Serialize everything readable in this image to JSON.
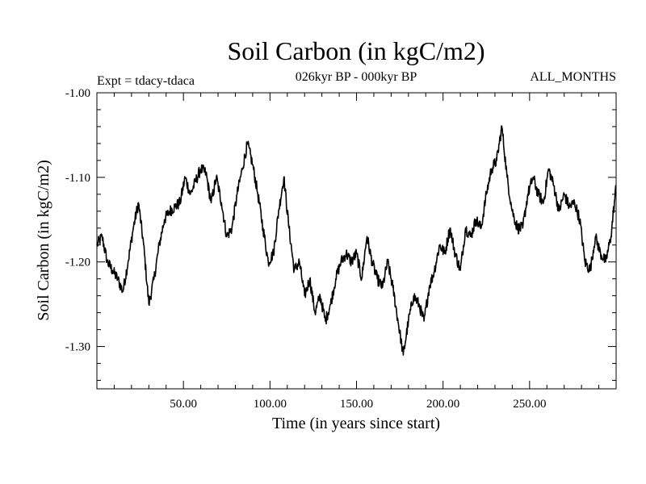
{
  "chart_data": {
    "type": "line",
    "title": "Soil Carbon (in kgC/m2)",
    "subtitle": "026kyr BP - 000kyr BP",
    "left_annotation": "Expt = tdacy-tdaca",
    "right_annotation": "ALL_MONTHS",
    "xlabel": "Time (in years since start)",
    "ylabel": "Soil Carbon (in kgC/m2)",
    "xlim": [
      0,
      300
    ],
    "ylim": [
      -1.35,
      -1.0
    ],
    "x_ticks": [
      50,
      100,
      150,
      200,
      250
    ],
    "x_tick_labels": [
      "50.00",
      "100.00",
      "150.00",
      "200.00",
      "250.00"
    ],
    "y_ticks": [
      -1.0,
      -1.1,
      -1.2,
      -1.3
    ],
    "y_tick_labels": [
      "-1.00",
      "-1.10",
      "-1.20",
      "-1.30"
    ],
    "grid": false,
    "series": [
      {
        "name": "Soil Carbon",
        "color": "#000000",
        "x": [
          0,
          3,
          6,
          9,
          12,
          15,
          18,
          21,
          24,
          27,
          30,
          33,
          36,
          39,
          42,
          45,
          48,
          51,
          54,
          57,
          60,
          63,
          66,
          69,
          72,
          75,
          78,
          81,
          84,
          87,
          90,
          93,
          96,
          99,
          102,
          105,
          108,
          111,
          114,
          117,
          120,
          123,
          126,
          129,
          132,
          135,
          138,
          141,
          144,
          147,
          150,
          153,
          156,
          159,
          162,
          165,
          168,
          171,
          174,
          177,
          180,
          183,
          186,
          189,
          192,
          195,
          198,
          201,
          204,
          207,
          210,
          213,
          216,
          219,
          222,
          225,
          228,
          231,
          234,
          237,
          240,
          243,
          246,
          249,
          252,
          255,
          258,
          261,
          264,
          267,
          270,
          273,
          276,
          279,
          282,
          285,
          288,
          291,
          294,
          297,
          300
        ],
        "values": [
          -1.18,
          -1.17,
          -1.2,
          -1.21,
          -1.22,
          -1.235,
          -1.2,
          -1.16,
          -1.13,
          -1.18,
          -1.25,
          -1.22,
          -1.18,
          -1.15,
          -1.14,
          -1.135,
          -1.13,
          -1.1,
          -1.12,
          -1.105,
          -1.09,
          -1.095,
          -1.13,
          -1.1,
          -1.13,
          -1.17,
          -1.16,
          -1.12,
          -1.09,
          -1.06,
          -1.085,
          -1.12,
          -1.16,
          -1.2,
          -1.19,
          -1.14,
          -1.1,
          -1.16,
          -1.21,
          -1.2,
          -1.24,
          -1.22,
          -1.26,
          -1.24,
          -1.27,
          -1.25,
          -1.22,
          -1.2,
          -1.19,
          -1.2,
          -1.19,
          -1.22,
          -1.17,
          -1.2,
          -1.22,
          -1.23,
          -1.2,
          -1.23,
          -1.27,
          -1.31,
          -1.27,
          -1.24,
          -1.25,
          -1.27,
          -1.23,
          -1.21,
          -1.18,
          -1.19,
          -1.16,
          -1.19,
          -1.21,
          -1.16,
          -1.17,
          -1.15,
          -1.16,
          -1.12,
          -1.09,
          -1.08,
          -1.04,
          -1.1,
          -1.14,
          -1.16,
          -1.16,
          -1.12,
          -1.1,
          -1.12,
          -1.13,
          -1.09,
          -1.11,
          -1.14,
          -1.12,
          -1.135,
          -1.13,
          -1.15,
          -1.2,
          -1.21,
          -1.17,
          -1.19,
          -1.2,
          -1.17,
          -1.11
        ]
      }
    ]
  }
}
